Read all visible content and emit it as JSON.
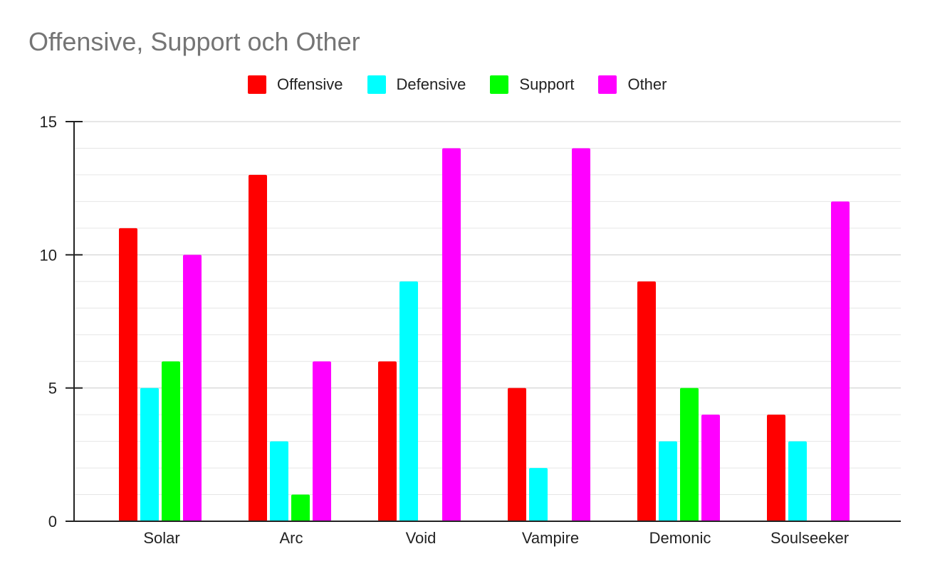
{
  "chart_data": {
    "type": "bar",
    "title": "Offensive, Support och Other",
    "xlabel": "",
    "ylabel": "",
    "categories": [
      "Solar",
      "Arc",
      "Void",
      "Vampire",
      "Demonic",
      "Soulseeker"
    ],
    "series": [
      {
        "name": "Offensive",
        "color": "#ff0000",
        "values": [
          11,
          13,
          6,
          5,
          9,
          4
        ]
      },
      {
        "name": "Defensive",
        "color": "#00ffff",
        "values": [
          5,
          3,
          9,
          2,
          3,
          3
        ]
      },
      {
        "name": "Support",
        "color": "#00ff00",
        "values": [
          6,
          1,
          0,
          0,
          5,
          0
        ]
      },
      {
        "name": "Other",
        "color": "#ff00ff",
        "values": [
          10,
          6,
          14,
          14,
          4,
          12
        ]
      }
    ],
    "ylim": [
      0,
      15
    ],
    "y_ticks": [
      0,
      5,
      10,
      15
    ],
    "minor_gridlines_per_major": 5,
    "grid": true,
    "legend_position": "top-center"
  }
}
